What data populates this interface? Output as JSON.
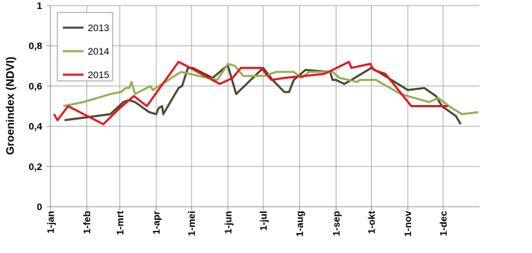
{
  "chart_data": {
    "type": "line",
    "ylabel": "Groenindex (NDVI)",
    "xlim": [
      0,
      365
    ],
    "ylim": [
      0,
      1
    ],
    "xticks": [
      {
        "value": 0,
        "label": "1-jan"
      },
      {
        "value": 31,
        "label": "1-feb"
      },
      {
        "value": 59,
        "label": "1-mrt"
      },
      {
        "value": 90,
        "label": "1-apr"
      },
      {
        "value": 120,
        "label": "1-mei"
      },
      {
        "value": 151,
        "label": "1-jun"
      },
      {
        "value": 181,
        "label": "1-jul"
      },
      {
        "value": 212,
        "label": "1-aug"
      },
      {
        "value": 243,
        "label": "1-sep"
      },
      {
        "value": 273,
        "label": "1-okt"
      },
      {
        "value": 304,
        "label": "1-nov"
      },
      {
        "value": 334,
        "label": "1-dec"
      }
    ],
    "yticks": [
      0,
      {
        "value": 0.2,
        "label": "0,2"
      },
      {
        "value": 0.4,
        "label": "0,4"
      },
      {
        "value": 0.6,
        "label": "0,6"
      },
      {
        "value": 0.8,
        "label": "0,8"
      },
      1
    ],
    "grid": true,
    "legend": "top-left",
    "series": [
      {
        "name": "2013",
        "color": "#4a4830",
        "x": [
          12,
          51,
          62,
          67,
          72,
          84,
          90,
          92,
          95,
          96,
          109,
          112,
          117,
          121,
          138,
          148,
          151,
          158,
          181,
          189,
          199,
          203,
          207,
          217,
          238,
          240,
          243,
          250,
          256,
          273,
          279,
          304,
          318,
          328,
          333,
          345,
          349
        ],
        "values": [
          0.43,
          0.46,
          0.52,
          0.53,
          0.52,
          0.47,
          0.46,
          0.49,
          0.5,
          0.46,
          0.59,
          0.6,
          0.69,
          0.69,
          0.64,
          0.69,
          0.7,
          0.56,
          0.69,
          0.63,
          0.57,
          0.57,
          0.63,
          0.68,
          0.67,
          0.63,
          0.63,
          0.61,
          0.63,
          0.69,
          0.67,
          0.58,
          0.59,
          0.55,
          0.5,
          0.45,
          0.41
        ]
      },
      {
        "name": "2014",
        "color": "#92b050",
        "x": [
          11,
          28,
          51,
          60,
          64,
          67,
          69,
          72,
          85,
          87,
          111,
          142,
          151,
          157,
          164,
          182,
          192,
          207,
          214,
          220,
          240,
          246,
          261,
          263,
          277,
          298,
          322,
          330,
          339,
          350,
          364
        ],
        "values": [
          0.5,
          0.52,
          0.56,
          0.57,
          0.59,
          0.59,
          0.62,
          0.56,
          0.6,
          0.58,
          0.67,
          0.63,
          0.71,
          0.7,
          0.65,
          0.65,
          0.67,
          0.67,
          0.64,
          0.67,
          0.67,
          0.64,
          0.62,
          0.63,
          0.63,
          0.56,
          0.52,
          0.54,
          0.5,
          0.46,
          0.47
        ]
      },
      {
        "name": "2015",
        "color": "#e8141c",
        "x": [
          3,
          6,
          15,
          45,
          59,
          71,
          82,
          109,
          119,
          144,
          155,
          162,
          179,
          188,
          199,
          233,
          254,
          256,
          272,
          275,
          285,
          307,
          338
        ],
        "values": [
          0.46,
          0.43,
          0.5,
          0.41,
          0.49,
          0.55,
          0.5,
          0.72,
          0.69,
          0.61,
          0.64,
          0.69,
          0.69,
          0.63,
          0.64,
          0.66,
          0.72,
          0.69,
          0.71,
          0.68,
          0.66,
          0.5,
          0.5
        ]
      }
    ]
  }
}
